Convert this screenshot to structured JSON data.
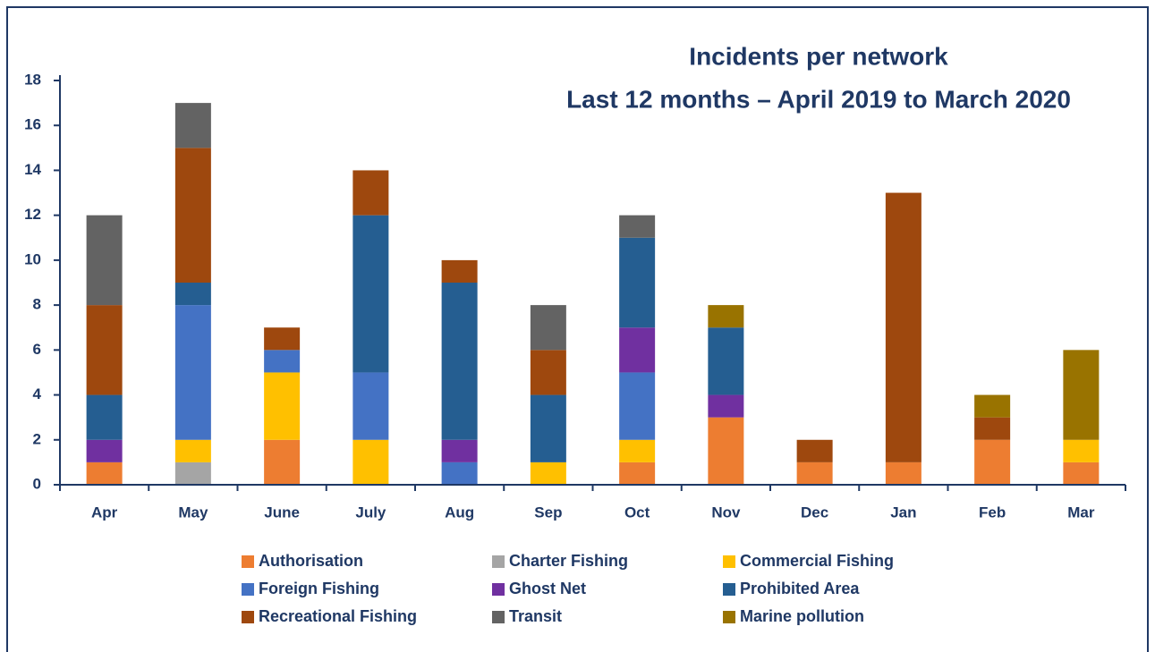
{
  "chart_data": {
    "type": "stacked-bar",
    "title": "Incidents per network",
    "subtitle": "Last 12 months – April 2019 to March 2020",
    "categories": [
      "Apr",
      "May",
      "June",
      "July",
      "Aug",
      "Sep",
      "Oct",
      "Nov",
      "Dec",
      "Jan",
      "Feb",
      "Mar"
    ],
    "series": [
      {
        "name": "Authorisation",
        "color": "#ed7d31",
        "values": [
          1,
          0,
          2,
          0,
          0,
          0,
          1,
          3,
          1,
          1,
          2,
          1
        ]
      },
      {
        "name": "Charter Fishing",
        "color": "#a5a5a5",
        "values": [
          0,
          1,
          0,
          0,
          0,
          0,
          0,
          0,
          0,
          0,
          0,
          0
        ]
      },
      {
        "name": "Commercial Fishing",
        "color": "#ffc000",
        "values": [
          0,
          1,
          3,
          2,
          0,
          1,
          1,
          0,
          0,
          0,
          0,
          1
        ]
      },
      {
        "name": "Foreign Fishing",
        "color": "#4472c4",
        "values": [
          0,
          6,
          1,
          3,
          1,
          0,
          3,
          0,
          0,
          0,
          0,
          0
        ]
      },
      {
        "name": "Ghost Net",
        "color": "#7030a0",
        "values": [
          1,
          0,
          0,
          0,
          1,
          0,
          2,
          1,
          0,
          0,
          0,
          0
        ]
      },
      {
        "name": "Prohibited Area",
        "color": "#255e91",
        "values": [
          2,
          1,
          0,
          7,
          7,
          3,
          4,
          3,
          0,
          0,
          0,
          0
        ]
      },
      {
        "name": "Recreational Fishing",
        "color": "#9e480e",
        "values": [
          4,
          6,
          1,
          2,
          1,
          2,
          0,
          0,
          1,
          12,
          1,
          0
        ]
      },
      {
        "name": "Transit",
        "color": "#636363",
        "values": [
          4,
          2,
          0,
          0,
          0,
          2,
          1,
          0,
          0,
          0,
          0,
          0
        ]
      },
      {
        "name": "Marine pollution",
        "color": "#997300",
        "values": [
          0,
          0,
          0,
          0,
          0,
          0,
          0,
          1,
          0,
          0,
          1,
          4
        ]
      }
    ],
    "ylim": [
      0,
      18
    ],
    "yticks": [
      0,
      2,
      4,
      6,
      8,
      10,
      12,
      14,
      16,
      18
    ]
  }
}
